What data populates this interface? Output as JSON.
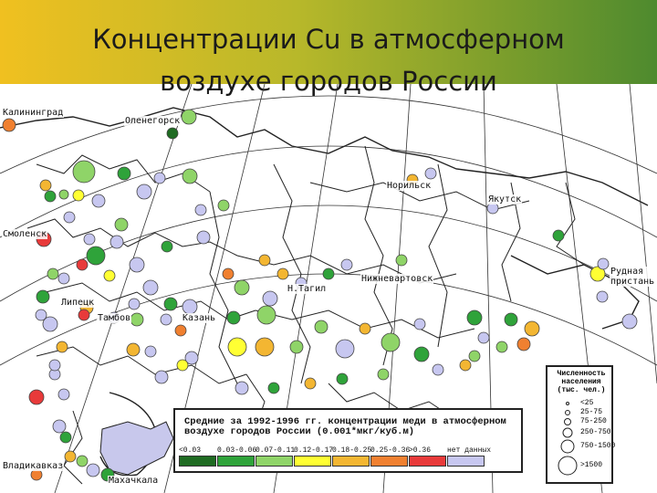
{
  "title": {
    "line1": "Концентрации Cu в атмосферном",
    "line2": "воздухе городов России"
  },
  "colors": {
    "banner_left": "#f0c020",
    "banner_right": "#4e8a2e",
    "sea": "#ffffff",
    "land_shade": "#c8c8ec",
    "boundaries": "#222222"
  },
  "city_labels": [
    "Калининград",
    "Оленегорск",
    "Норильск",
    "Якутск",
    "Смоленск",
    "Рудная пристань",
    "Нижневартовск",
    "Н.Тагил",
    "Липецк",
    "Тамбов",
    "Казань",
    "Владикавказ",
    "Махачкала"
  ],
  "legend": {
    "title": "Средние за 1992-1996 гг. концентрации меди в атмосферном воздухе городов России (0.001*мкг/куб.м)",
    "classes": [
      {
        "label": "<0.03",
        "color": "#1f6b22"
      },
      {
        "label": "0.03-0.06",
        "color": "#2fa33a"
      },
      {
        "label": "0.07-0.11",
        "color": "#8fd468"
      },
      {
        "label": "0.12-0.17",
        "color": "#ffff33"
      },
      {
        "label": "0.18-0.25",
        "color": "#f3b632"
      },
      {
        "label": "0.25-0.36",
        "color": "#f08030"
      },
      {
        "label": ">0.36",
        "color": "#e83a3a"
      },
      {
        "label": "нет данных",
        "color": "#c7c7f0"
      }
    ]
  },
  "population_legend": {
    "title": "Численность населения (тыс. чел.)",
    "classes": [
      "<25",
      "25-75",
      "75-250",
      "250-750",
      "750-1500",
      ">1500"
    ]
  },
  "cities": [
    {
      "cls": 5
    },
    {
      "cls": 2
    },
    {
      "cls": 0
    },
    {
      "cls": 2
    },
    {
      "cls": 4
    },
    {
      "cls": 2
    },
    {
      "cls": 1
    },
    {
      "cls": 7
    },
    {
      "cls": 3
    },
    {
      "cls": 7
    },
    {
      "cls": 7
    },
    {
      "cls": 2
    },
    {
      "cls": 7
    },
    {
      "cls": 1
    },
    {
      "cls": 2
    },
    {
      "cls": 6
    },
    {
      "cls": 7
    },
    {
      "cls": 7
    },
    {
      "cls": 1
    },
    {
      "cls": 6
    },
    {
      "cls": 7
    },
    {
      "cls": 3
    },
    {
      "cls": 7
    },
    {
      "cls": 7
    },
    {
      "cls": 1
    },
    {
      "cls": 7
    },
    {
      "cls": 4
    },
    {
      "cls": 6
    },
    {
      "cls": 7
    },
    {
      "cls": 2
    },
    {
      "cls": 7
    },
    {
      "cls": 5
    },
    {
      "cls": 7
    },
    {
      "cls": 4
    },
    {
      "cls": 7
    },
    {
      "cls": 3
    },
    {
      "cls": 7
    },
    {
      "cls": 7
    },
    {
      "cls": 7
    },
    {
      "cls": 1
    },
    {
      "cls": 2
    },
    {
      "cls": 7
    },
    {
      "cls": 4
    },
    {
      "cls": 7
    },
    {
      "cls": 7
    },
    {
      "cls": 6
    },
    {
      "cls": 7
    },
    {
      "cls": 1
    },
    {
      "cls": 4
    },
    {
      "cls": 2
    },
    {
      "cls": 7
    },
    {
      "cls": 1
    },
    {
      "cls": 5
    },
    {
      "cls": 7
    },
    {
      "cls": 2
    },
    {
      "cls": 1
    },
    {
      "cls": 3
    },
    {
      "cls": 4
    },
    {
      "cls": 2
    },
    {
      "cls": 7
    },
    {
      "cls": 2
    },
    {
      "cls": 1
    },
    {
      "cls": 2
    },
    {
      "cls": 4
    },
    {
      "cls": 7
    },
    {
      "cls": 1
    },
    {
      "cls": 7
    },
    {
      "cls": 1
    },
    {
      "cls": 2
    },
    {
      "cls": 5
    },
    {
      "cls": 4
    },
    {
      "cls": 2
    },
    {
      "cls": 7
    },
    {
      "cls": 1
    },
    {
      "cls": 4
    },
    {
      "cls": 1
    },
    {
      "cls": 2
    },
    {
      "cls": 7
    },
    {
      "cls": 4
    },
    {
      "cls": 7
    },
    {
      "cls": 7
    },
    {
      "cls": 3
    },
    {
      "cls": 7
    },
    {
      "cls": 1
    },
    {
      "cls": 7
    },
    {
      "cls": 7
    },
    {
      "cls": 4
    },
    {
      "cls": 7
    },
    {
      "cls": 2
    },
    {
      "cls": 5
    },
    {
      "cls": 1
    },
    {
      "cls": 7
    },
    {
      "cls": 7
    },
    {
      "cls": 2
    },
    {
      "cls": 4
    },
    {
      "cls": 4
    },
    {
      "cls": 7
    },
    {
      "cls": 1
    },
    {
      "cls": 7
    },
    {
      "cls": 2
    },
    {
      "cls": 5
    }
  ]
}
